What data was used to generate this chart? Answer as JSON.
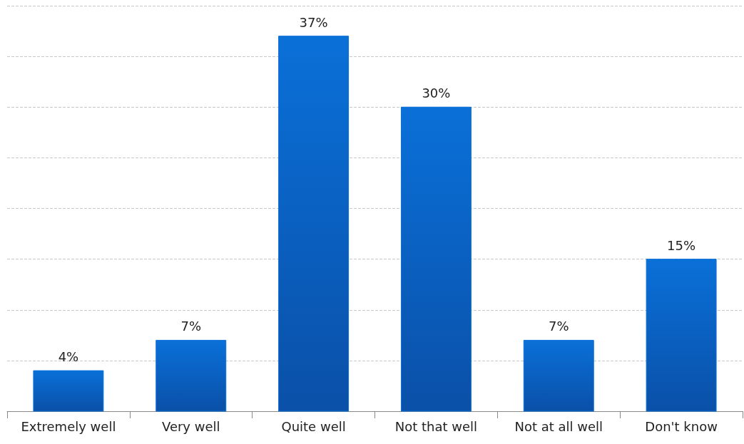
{
  "chart_data": {
    "type": "bar",
    "categories": [
      "Extremely well",
      "Very well",
      "Quite well",
      "Not that well",
      "Not at all well",
      "Don't know"
    ],
    "values": [
      4,
      7,
      37,
      30,
      7,
      15
    ],
    "value_labels": [
      "4%",
      "7%",
      "37%",
      "30%",
      "7%",
      "15%"
    ],
    "color": "#0a70d8",
    "ylim": [
      0,
      40
    ],
    "yticks": [
      {
        "value": 0,
        "label": null
      },
      {
        "value": 5,
        "label": null
      },
      {
        "value": 10,
        "label": null
      },
      {
        "value": 15,
        "label": null
      },
      {
        "value": 20,
        "label": null
      },
      {
        "value": 25,
        "label": null
      },
      {
        "value": 30,
        "label": null
      },
      {
        "value": 35,
        "label": null
      },
      {
        "value": 40,
        "label": null
      }
    ],
    "grid": "y",
    "tick_labels": "x"
  }
}
